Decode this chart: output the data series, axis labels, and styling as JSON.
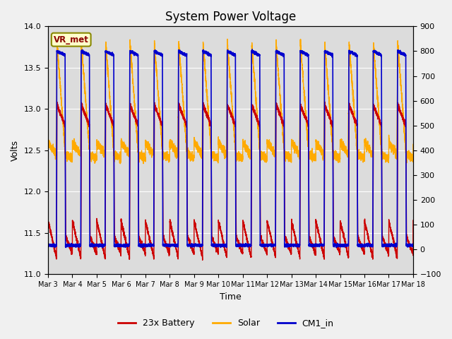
{
  "title": "System Power Voltage",
  "xlabel": "Time",
  "ylabel": "Volts",
  "ylim_left": [
    11.0,
    14.0
  ],
  "ylim_right": [
    -100,
    900
  ],
  "yticks_left": [
    11.0,
    11.5,
    12.0,
    12.5,
    13.0,
    13.5,
    14.0
  ],
  "yticks_right": [
    -100,
    0,
    100,
    200,
    300,
    400,
    500,
    600,
    700,
    800,
    900
  ],
  "xtick_labels": [
    "Mar 3",
    "Mar 4",
    "Mar 5",
    "Mar 6",
    "Mar 7",
    "Mar 8",
    "Mar 9",
    "Mar 10",
    "Mar 11",
    "Mar 12",
    "Mar 13",
    "Mar 14",
    "Mar 15",
    "Mar 16",
    "Mar 17",
    "Mar 18"
  ],
  "num_days": 15,
  "color_battery": "#cc0000",
  "color_solar": "#ffaa00",
  "color_cm1": "#0000cc",
  "color_bg": "#dcdcdc",
  "color_fig": "#f0f0f0",
  "legend_battery": "23x Battery",
  "legend_solar": "Solar",
  "legend_cm1": "CM1_in",
  "vr_met_label": "VR_met",
  "title_fontsize": 12,
  "axis_fontsize": 9,
  "tick_fontsize": 8
}
